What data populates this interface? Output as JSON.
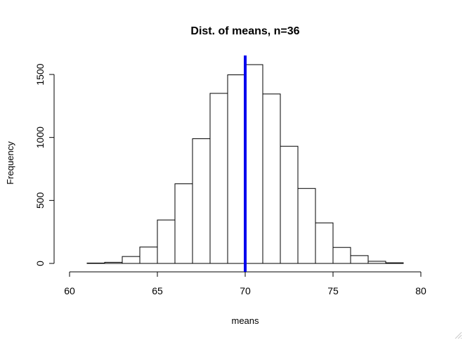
{
  "chart_data": {
    "type": "bar",
    "title": "Dist. of means, n=36",
    "xlabel": "means",
    "ylabel": "Frequency",
    "bin_edges": [
      61,
      62,
      63,
      64,
      65,
      66,
      67,
      68,
      69,
      70,
      71,
      72,
      73,
      74,
      75,
      76,
      77,
      78,
      79
    ],
    "values": [
      3,
      9,
      55,
      130,
      345,
      632,
      990,
      1350,
      1497,
      1578,
      1345,
      930,
      595,
      322,
      127,
      62,
      17,
      5
    ],
    "xlim": [
      60,
      80
    ],
    "ylim": [
      0,
      1650
    ],
    "xticks": [
      60,
      65,
      70,
      75,
      80
    ],
    "yticks": [
      0,
      500,
      1000,
      1500
    ],
    "grid": false,
    "reference_line": {
      "x": 70,
      "color": "#0000ee"
    },
    "bar_fill": "#ffffff",
    "bar_stroke": "#000000"
  }
}
